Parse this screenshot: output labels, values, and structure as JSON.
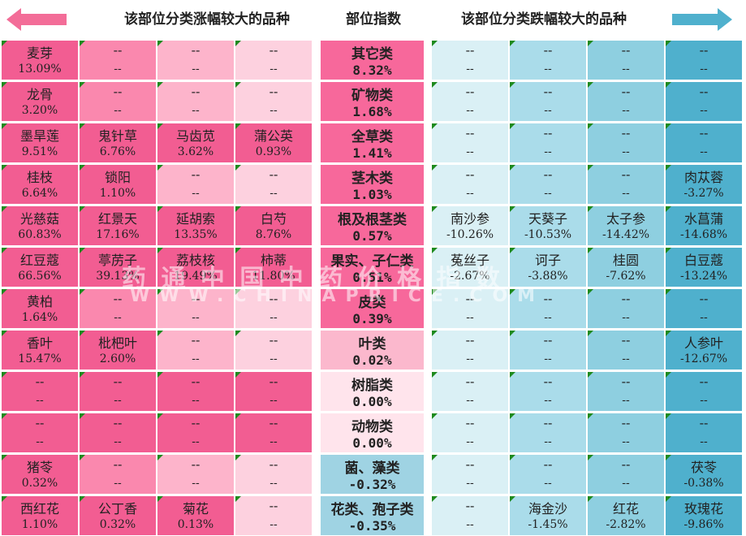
{
  "header": {
    "left_title": "该部位分类涨幅较大的品种",
    "mid_title": "部位指数",
    "right_title": "该部位分类跌幅较大的品种"
  },
  "watermark": {
    "line1": "药 通 中 国 中 药 价 格 指 数",
    "line2": "WWW.CHINAPRICE.COM"
  },
  "colors": {
    "up_row": [
      "#f25d92",
      "#fa88ae",
      "#fdb4cb",
      "#fdd1df"
    ],
    "up_row_light": [
      "#f8a4c0",
      "#fbbdd1",
      "#fdd3e1",
      "#fde6ee"
    ],
    "down_col": [
      "#daf0f5",
      "#aadcea",
      "#8ecfe0",
      "#4fb0cd"
    ],
    "mid_up": "#f7689b",
    "mid_up_light": "#fbb8cd",
    "mid_zero": "#ffe4ec",
    "mid_down": "#9fd3e3",
    "corner_mark": "#1e8a1e",
    "arrow_left": "#f36d98",
    "arrow_right": "#4fb0cd"
  },
  "chart_data": {
    "type": "table",
    "title": "",
    "placeholder": "--",
    "rows": [
      {
        "category": "其它类",
        "index": "8.32%",
        "up": [
          [
            "麦芽",
            "13.09%"
          ],
          [
            "--",
            "--"
          ],
          [
            "--",
            "--"
          ],
          [
            "--",
            "--"
          ]
        ],
        "down": [
          [
            "--",
            "--"
          ],
          [
            "--",
            "--"
          ],
          [
            "--",
            "--"
          ],
          [
            "--",
            "--"
          ]
        ]
      },
      {
        "category": "矿物类",
        "index": "1.68%",
        "up": [
          [
            "龙骨",
            "3.20%"
          ],
          [
            "--",
            "--"
          ],
          [
            "--",
            "--"
          ],
          [
            "--",
            "--"
          ]
        ],
        "down": [
          [
            "--",
            "--"
          ],
          [
            "--",
            "--"
          ],
          [
            "--",
            "--"
          ],
          [
            "--",
            "--"
          ]
        ]
      },
      {
        "category": "全草类",
        "index": "1.41%",
        "up": [
          [
            "墨旱莲",
            "9.51%"
          ],
          [
            "鬼针草",
            "6.76%"
          ],
          [
            "马齿苋",
            "3.62%"
          ],
          [
            "蒲公英",
            "0.93%"
          ]
        ],
        "down": [
          [
            "--",
            "--"
          ],
          [
            "--",
            "--"
          ],
          [
            "--",
            "--"
          ],
          [
            "--",
            "--"
          ]
        ]
      },
      {
        "category": "茎木类",
        "index": "1.03%",
        "up": [
          [
            "桂枝",
            "6.64%"
          ],
          [
            "锁阳",
            "1.10%"
          ],
          [
            "--",
            "--"
          ],
          [
            "--",
            "--"
          ]
        ],
        "down": [
          [
            "--",
            "--"
          ],
          [
            "--",
            "--"
          ],
          [
            "--",
            "--"
          ],
          [
            "肉苁蓉",
            "-3.27%"
          ]
        ]
      },
      {
        "category": "根及根茎类",
        "index": "0.57%",
        "up": [
          [
            "光慈菇",
            "60.83%"
          ],
          [
            "红景天",
            "17.16%"
          ],
          [
            "延胡索",
            "13.35%"
          ],
          [
            "白芍",
            "8.76%"
          ]
        ],
        "down": [
          [
            "南沙参",
            "-10.26%"
          ],
          [
            "天葵子",
            "-10.53%"
          ],
          [
            "太子参",
            "-14.42%"
          ],
          [
            "水菖蒲",
            "-14.68%"
          ]
        ]
      },
      {
        "category": "果实、子仁类",
        "index": "0.51%",
        "up": [
          [
            "红豆蔻",
            "66.56%"
          ],
          [
            "葶苈子",
            "39.13%"
          ],
          [
            "荔枝核",
            "19.49%"
          ],
          [
            "柿蒂",
            "11.80%"
          ]
        ],
        "down": [
          [
            "菟丝子",
            "-2.67%"
          ],
          [
            "诃子",
            "-3.88%"
          ],
          [
            "桂圆",
            "-7.62%"
          ],
          [
            "白豆蔻",
            "-13.24%"
          ]
        ]
      },
      {
        "category": "皮类",
        "index": "0.39%",
        "up": [
          [
            "黄柏",
            "1.64%"
          ],
          [
            "--",
            "--"
          ],
          [
            "--",
            "--"
          ],
          [
            "--",
            "--"
          ]
        ],
        "down": [
          [
            "--",
            "--"
          ],
          [
            "--",
            "--"
          ],
          [
            "--",
            "--"
          ],
          [
            "--",
            "--"
          ]
        ]
      },
      {
        "category": "叶类",
        "index": "0.02%",
        "up": [
          [
            "香叶",
            "15.47%"
          ],
          [
            "枇杷叶",
            "2.60%"
          ],
          [
            "--",
            "--"
          ],
          [
            "--",
            "--"
          ]
        ],
        "down": [
          [
            "--",
            "--"
          ],
          [
            "--",
            "--"
          ],
          [
            "--",
            "--"
          ],
          [
            "人参叶",
            "-12.67%"
          ]
        ]
      },
      {
        "category": "树脂类",
        "index": "0.00%",
        "up": [
          [
            "--",
            "--"
          ],
          [
            "--",
            "--"
          ],
          [
            "--",
            "--"
          ],
          [
            "--",
            "--"
          ]
        ],
        "down": [
          [
            "--",
            "--"
          ],
          [
            "--",
            "--"
          ],
          [
            "--",
            "--"
          ],
          [
            "--",
            "--"
          ]
        ]
      },
      {
        "category": "动物类",
        "index": "0.00%",
        "up": [
          [
            "--",
            "--"
          ],
          [
            "--",
            "--"
          ],
          [
            "--",
            "--"
          ],
          [
            "--",
            "--"
          ]
        ],
        "down": [
          [
            "--",
            "--"
          ],
          [
            "--",
            "--"
          ],
          [
            "--",
            "--"
          ],
          [
            "--",
            "--"
          ]
        ]
      },
      {
        "category": "菌、藻类",
        "index": "-0.32%",
        "up": [
          [
            "猪苓",
            "0.32%"
          ],
          [
            "--",
            "--"
          ],
          [
            "--",
            "--"
          ],
          [
            "--",
            "--"
          ]
        ],
        "down": [
          [
            "--",
            "--"
          ],
          [
            "--",
            "--"
          ],
          [
            "--",
            "--"
          ],
          [
            "茯苓",
            "-0.38%"
          ]
        ]
      },
      {
        "category": "花类、孢子类",
        "index": "-0.35%",
        "up": [
          [
            "西红花",
            "1.10%"
          ],
          [
            "公丁香",
            "0.32%"
          ],
          [
            "菊花",
            "0.13%"
          ],
          [
            "--",
            "--"
          ]
        ],
        "down": [
          [
            "--",
            "--"
          ],
          [
            "海金沙",
            "-1.45%"
          ],
          [
            "红花",
            "-2.82%"
          ],
          [
            "玫瑰花",
            "-9.86%"
          ]
        ]
      }
    ]
  }
}
